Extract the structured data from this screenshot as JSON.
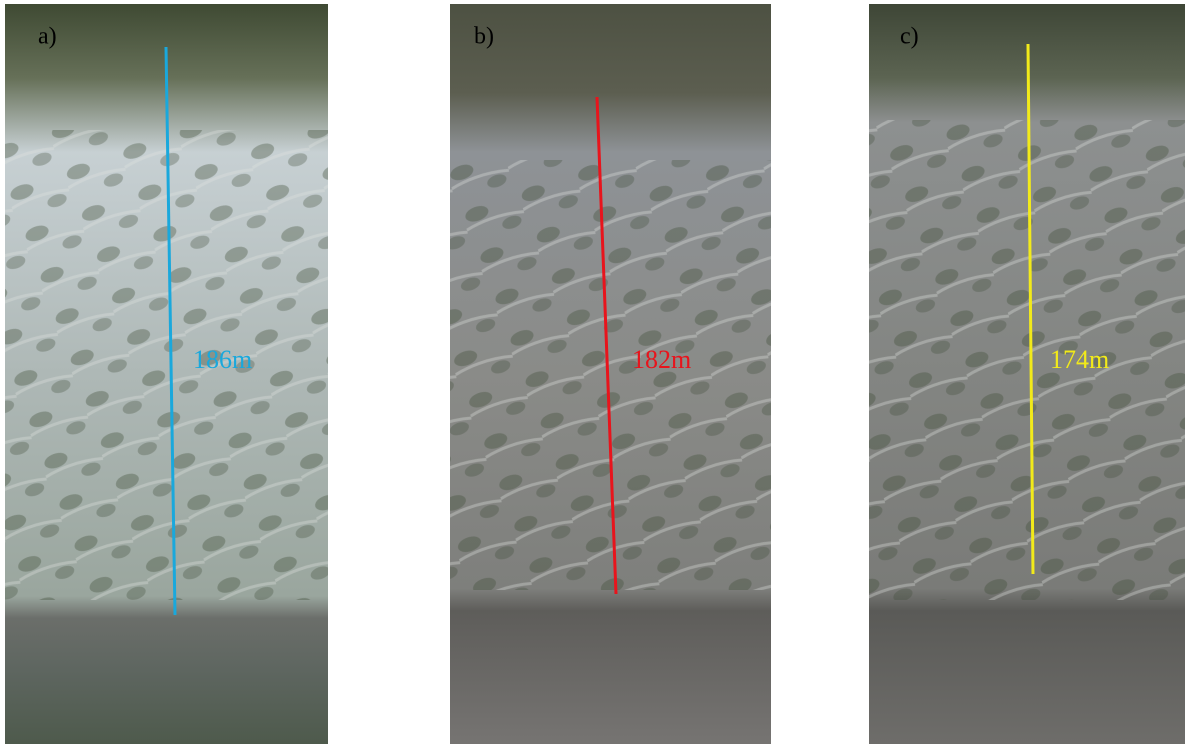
{
  "panels": [
    {
      "label": "a)",
      "measurement": "186m",
      "color": "#1aa8dc"
    },
    {
      "label": "b)",
      "measurement": "182m",
      "color": "#e8141c"
    },
    {
      "label": "c)",
      "measurement": "174m",
      "color": "#f2ea1a"
    }
  ]
}
